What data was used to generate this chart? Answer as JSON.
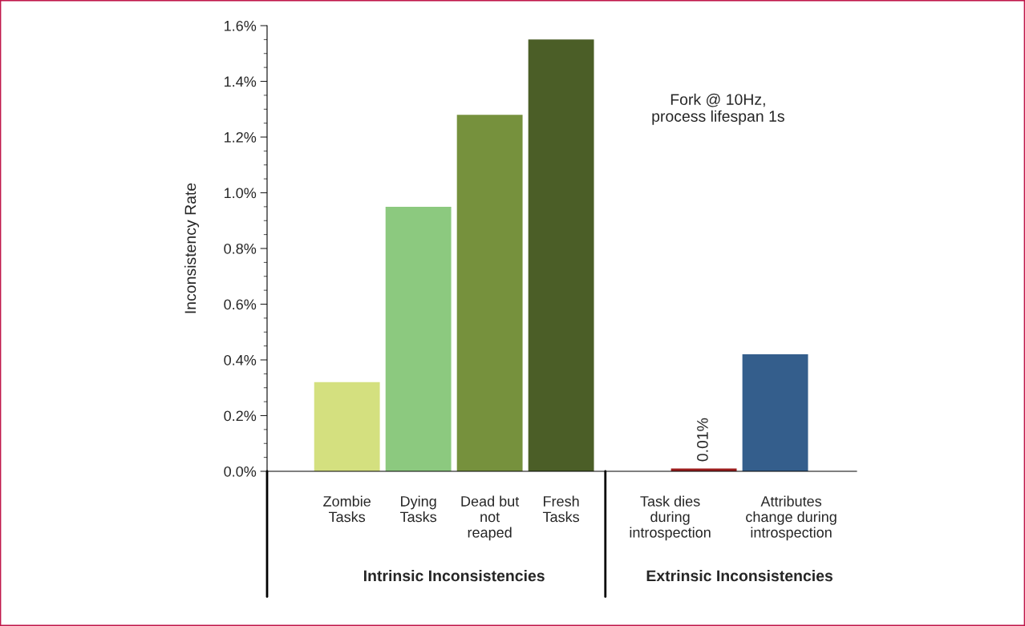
{
  "chart_data": {
    "type": "bar",
    "ylabel": "Inconsistency Rate",
    "categories": [
      "Zombie\nTasks",
      "Dying\nTasks",
      "Dead but\nnot\nreaped",
      "Fresh\nTasks",
      null,
      "Task dies\nduring\nintrospection",
      "Attributes\nchange during\nintrospection"
    ],
    "values": [
      0.32,
      0.95,
      1.28,
      1.55,
      null,
      0.01,
      0.42
    ],
    "colors": [
      "#d4e07f",
      "#8cc97f",
      "#76913d",
      "#4b5e27",
      "#ffffff",
      "#9b1c1c",
      "#345e8c"
    ],
    "value_labels": [
      null,
      null,
      null,
      null,
      null,
      "0.01%",
      null
    ],
    "ylim": [
      0,
      1.6
    ],
    "yticks": [
      {
        "value": 0,
        "label": "0.0%"
      },
      {
        "value": 0.2,
        "label": "0.2%"
      },
      {
        "value": 0.4,
        "label": "0.4%"
      },
      {
        "value": 0.6,
        "label": "0.6%"
      },
      {
        "value": 0.8,
        "label": "0.8%"
      },
      {
        "value": 1.0,
        "label": "1.0%"
      },
      {
        "value": 1.2,
        "label": "1.2%"
      },
      {
        "value": 1.4,
        "label": "1.4%"
      },
      {
        "value": 1.6,
        "label": "1.6%"
      }
    ],
    "annotations": [
      "Fork @ 10Hz,\nprocess lifespan 1s",
      "Intrinsic Inconsistencies",
      "Extrinsic Inconsistencies"
    ],
    "grid": false,
    "legend": false
  }
}
